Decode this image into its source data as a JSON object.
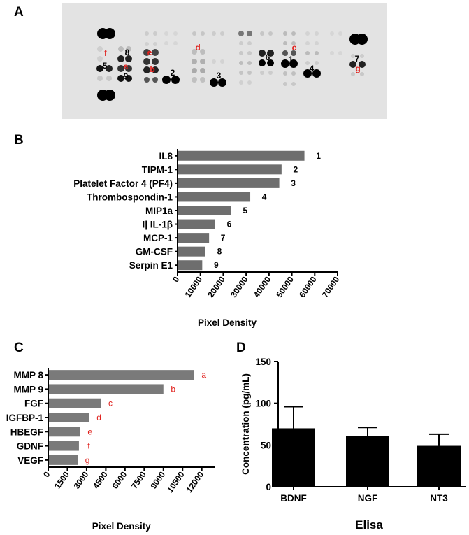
{
  "panels": {
    "a": "A",
    "b": "B",
    "c": "C",
    "d": "D"
  },
  "blot": {
    "black_labels": [
      "1",
      "2",
      "3",
      "4",
      "5",
      "6",
      "7",
      "8",
      "9"
    ],
    "red_labels": [
      "a",
      "b",
      "c",
      "d",
      "e",
      "f",
      "g"
    ]
  },
  "chart_data": [
    {
      "panel": "B",
      "type": "bar",
      "orientation": "horizontal",
      "categories": [
        "IL8",
        "TIPM-1",
        "Platelet Factor 4 (PF4)",
        "Thrombospondin-1",
        "MIP1a",
        "I| IL-1β",
        "MCP-1",
        "GM-CSF",
        "Serpin E1"
      ],
      "values": [
        55500,
        45500,
        44500,
        31800,
        23500,
        16500,
        13800,
        12200,
        10800
      ],
      "data_labels": [
        "1",
        "2",
        "3",
        "4",
        "5",
        "6",
        "7",
        "8",
        "9"
      ],
      "xlabel": "Pixel  Density",
      "ylabel": "",
      "xlim": [
        0,
        70000
      ],
      "ticks": [
        "0",
        "10000",
        "20000",
        "30000",
        "40000",
        "50000",
        "60000",
        "70000"
      ],
      "bar_color": "#6e6e6e",
      "label_color": "#000000"
    },
    {
      "panel": "C",
      "type": "bar",
      "orientation": "horizontal",
      "categories": [
        "MMP 8",
        "MMP 9",
        "FGF",
        "IGFBP-1",
        "HBEGF",
        "GDNF",
        "VEGF"
      ],
      "values": [
        11400,
        9000,
        4100,
        3200,
        2500,
        2400,
        2300
      ],
      "data_labels": [
        "a",
        "b",
        "c",
        "d",
        "e",
        "f",
        "g"
      ],
      "xlabel": "Pixel Density",
      "ylabel": "",
      "xlim": [
        0,
        13000
      ],
      "ticks": [
        "0",
        "1500",
        "3000",
        "4500",
        "6000",
        "7500",
        "9000",
        "10500",
        "12000"
      ],
      "bar_color": "#7a7a7a",
      "label_color": "#e0201c"
    },
    {
      "panel": "D",
      "type": "bar",
      "orientation": "vertical",
      "categories": [
        "BDNF",
        "NGF",
        "NT3"
      ],
      "values": [
        70,
        61,
        49
      ],
      "errors": [
        26,
        10,
        14
      ],
      "xlabel": "Elisa",
      "ylabel": "Concentration (pg/mL)",
      "ylim": [
        0,
        150
      ],
      "ticks": [
        "0",
        "50",
        "100",
        "150"
      ],
      "bar_color": "#000000"
    }
  ]
}
